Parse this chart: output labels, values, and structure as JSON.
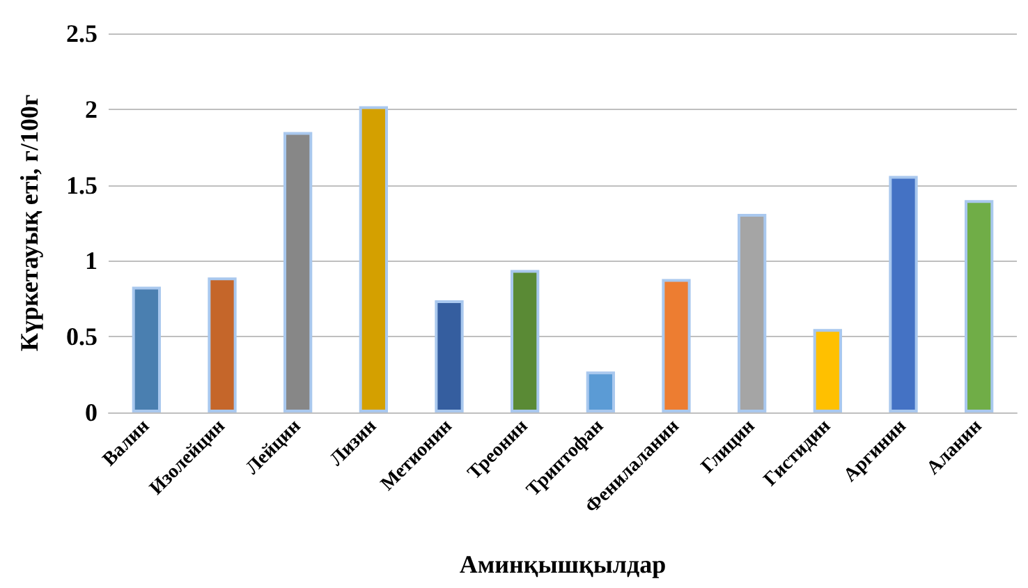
{
  "chart_data": {
    "type": "bar",
    "xlabel": "Аминқышқылдар",
    "ylabel": "Күркетауық еті, г/100г",
    "categories": [
      "Валин",
      "Изолейцин",
      "Лейцин",
      "Лизин",
      "Метионин",
      "Треонин",
      "Триптофан",
      "Фенилаланин",
      "Глицин",
      "Гистидин",
      "Аргинин",
      "Аланин"
    ],
    "values": [
      0.83,
      0.89,
      1.85,
      2.02,
      0.74,
      0.94,
      0.27,
      0.88,
      1.31,
      0.55,
      1.56,
      1.4
    ],
    "colors": [
      "#4a7fb0",
      "#c5662a",
      "#878787",
      "#d4a000",
      "#355e9f",
      "#5a8a35",
      "#5b9bd5",
      "#ed7d31",
      "#a5a5a5",
      "#ffc000",
      "#4472c4",
      "#70ad47"
    ],
    "ylim": [
      0,
      2.5
    ],
    "yticks": [
      0,
      0.5,
      1,
      1.5,
      2,
      2.5
    ],
    "grid": "y"
  }
}
